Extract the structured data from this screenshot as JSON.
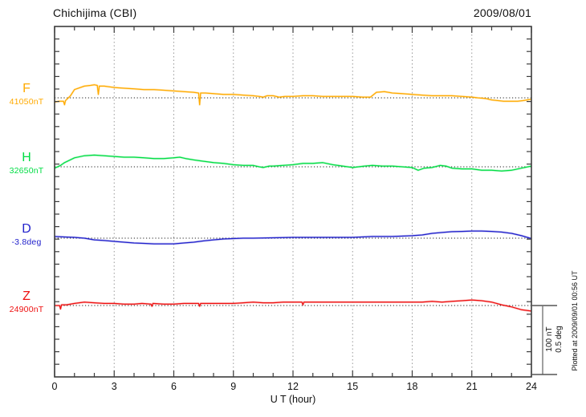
{
  "header": {
    "title": "Chichijima (CBI)",
    "date": "2009/08/01"
  },
  "footer": {
    "plotted_at": "Plotted at 2009/09/01 00:56 UT"
  },
  "chart_data": {
    "type": "line",
    "title": "Chichijima (CBI)",
    "date": "2009/08/01",
    "xlabel": "U T (hour)",
    "x_range": [
      0,
      24
    ],
    "x_ticks": [
      0,
      3,
      6,
      9,
      12,
      15,
      18,
      21,
      24
    ],
    "grid": "vertical dotted gridlines every 3 hours; dotted horizontal baseline per trace",
    "legend_position": "left margin, one label per stacked trace",
    "scale_labels": [
      "100 nT",
      "0.5 deg"
    ],
    "scale": {
      "nT_per_division": 100,
      "deg_per_division": 0.5
    },
    "series": [
      {
        "name": "F",
        "unit": "nT",
        "baseline": 41050,
        "baseline_label": "41050nT",
        "color": "#FFAA00",
        "points": [
          [
            0,
            41044
          ],
          [
            0.2,
            41045
          ],
          [
            0.45,
            41045
          ],
          [
            0.5,
            41040
          ],
          [
            0.55,
            41046
          ],
          [
            0.8,
            41053
          ],
          [
            1,
            41062
          ],
          [
            1.5,
            41067
          ],
          [
            1.8,
            41068
          ],
          [
            2,
            41069
          ],
          [
            2.15,
            41068
          ],
          [
            2.2,
            41055
          ],
          [
            2.25,
            41067
          ],
          [
            2.5,
            41067
          ],
          [
            3,
            41065
          ],
          [
            3.5,
            41064
          ],
          [
            4,
            41063
          ],
          [
            4.5,
            41062
          ],
          [
            5,
            41062
          ],
          [
            5.5,
            41061
          ],
          [
            6,
            41060
          ],
          [
            6.5,
            41059
          ],
          [
            7,
            41058
          ],
          [
            7.25,
            41057
          ],
          [
            7.3,
            41040
          ],
          [
            7.35,
            41057
          ],
          [
            7.6,
            41057
          ],
          [
            8,
            41056
          ],
          [
            8.5,
            41055
          ],
          [
            9,
            41055
          ],
          [
            9.5,
            41054
          ],
          [
            10,
            41053
          ],
          [
            10.3,
            41052
          ],
          [
            10.5,
            41051
          ],
          [
            10.7,
            41053
          ],
          [
            11,
            41053
          ],
          [
            11.3,
            41051
          ],
          [
            11.6,
            41052
          ],
          [
            12,
            41052
          ],
          [
            12.5,
            41053
          ],
          [
            13,
            41053
          ],
          [
            13.5,
            41052
          ],
          [
            14,
            41052
          ],
          [
            14.5,
            41052
          ],
          [
            15,
            41052
          ],
          [
            15.5,
            41051
          ],
          [
            15.9,
            41051
          ],
          [
            16.2,
            41058
          ],
          [
            16.6,
            41059
          ],
          [
            17,
            41057
          ],
          [
            17.5,
            41056
          ],
          [
            18,
            41055
          ],
          [
            18.5,
            41054
          ],
          [
            19,
            41053
          ],
          [
            19.5,
            41053
          ],
          [
            20,
            41053
          ],
          [
            20.5,
            41052
          ],
          [
            21,
            41051
          ],
          [
            21.3,
            41050
          ],
          [
            21.7,
            41049
          ],
          [
            22,
            41047
          ],
          [
            22.3,
            41046
          ],
          [
            22.6,
            41045
          ],
          [
            23,
            41045
          ],
          [
            23.3,
            41045
          ],
          [
            23.6,
            41046
          ],
          [
            24,
            41048
          ]
        ]
      },
      {
        "name": "H",
        "unit": "nT",
        "baseline": 32650,
        "baseline_label": "32650nT",
        "color": "#00DD44",
        "points": [
          [
            0,
            32648
          ],
          [
            0.3,
            32652
          ],
          [
            0.5,
            32656
          ],
          [
            1,
            32663
          ],
          [
            1.5,
            32666
          ],
          [
            2,
            32667
          ],
          [
            2.5,
            32666
          ],
          [
            3,
            32665
          ],
          [
            3.5,
            32664
          ],
          [
            4,
            32664
          ],
          [
            4.5,
            32663
          ],
          [
            5,
            32662
          ],
          [
            5.5,
            32662
          ],
          [
            6,
            32663
          ],
          [
            6.3,
            32664
          ],
          [
            6.6,
            32662
          ],
          [
            7,
            32660
          ],
          [
            7.5,
            32658
          ],
          [
            8,
            32656
          ],
          [
            8.5,
            32655
          ],
          [
            9,
            32653
          ],
          [
            9.5,
            32652
          ],
          [
            10,
            32652
          ],
          [
            10.3,
            32650
          ],
          [
            10.5,
            32649
          ],
          [
            10.8,
            32651
          ],
          [
            11,
            32651
          ],
          [
            11.5,
            32652
          ],
          [
            12,
            32653
          ],
          [
            12.5,
            32655
          ],
          [
            13,
            32655
          ],
          [
            13.5,
            32656
          ],
          [
            14,
            32653
          ],
          [
            14.5,
            32651
          ],
          [
            15,
            32649
          ],
          [
            15.3,
            32650
          ],
          [
            15.6,
            32651
          ],
          [
            16,
            32652
          ],
          [
            16.5,
            32651
          ],
          [
            17,
            32651
          ],
          [
            17.5,
            32650
          ],
          [
            18,
            32649
          ],
          [
            18.3,
            32645
          ],
          [
            18.6,
            32648
          ],
          [
            19,
            32649
          ],
          [
            19.4,
            32652
          ],
          [
            19.7,
            32651
          ],
          [
            20,
            32648
          ],
          [
            20.5,
            32647
          ],
          [
            21,
            32647
          ],
          [
            21.5,
            32645
          ],
          [
            22,
            32645
          ],
          [
            22.5,
            32644
          ],
          [
            23,
            32645
          ],
          [
            23.5,
            32648
          ],
          [
            24,
            32651
          ]
        ]
      },
      {
        "name": "D",
        "unit": "deg",
        "baseline": -3.8,
        "baseline_label": "-3.8deg",
        "color": "#2222CC",
        "points": [
          [
            0,
            -3.788
          ],
          [
            0.5,
            -3.791
          ],
          [
            1,
            -3.794
          ],
          [
            1.5,
            -3.8
          ],
          [
            2,
            -3.812
          ],
          [
            2.5,
            -3.817
          ],
          [
            3,
            -3.823
          ],
          [
            3.5,
            -3.829
          ],
          [
            4,
            -3.835
          ],
          [
            4.5,
            -3.838
          ],
          [
            5,
            -3.841
          ],
          [
            5.5,
            -3.841
          ],
          [
            6,
            -3.841
          ],
          [
            6.5,
            -3.835
          ],
          [
            7,
            -3.829
          ],
          [
            7.5,
            -3.82
          ],
          [
            8,
            -3.812
          ],
          [
            8.5,
            -3.806
          ],
          [
            9,
            -3.803
          ],
          [
            9.5,
            -3.8
          ],
          [
            10,
            -3.8
          ],
          [
            11,
            -3.797
          ],
          [
            12,
            -3.794
          ],
          [
            13,
            -3.794
          ],
          [
            14,
            -3.794
          ],
          [
            15,
            -3.794
          ],
          [
            16,
            -3.788
          ],
          [
            17,
            -3.788
          ],
          [
            18,
            -3.782
          ],
          [
            18.5,
            -3.777
          ],
          [
            19,
            -3.765
          ],
          [
            19.5,
            -3.759
          ],
          [
            20,
            -3.753
          ],
          [
            20.5,
            -3.751
          ],
          [
            21,
            -3.748
          ],
          [
            21.5,
            -3.748
          ],
          [
            22,
            -3.751
          ],
          [
            22.5,
            -3.756
          ],
          [
            23,
            -3.765
          ],
          [
            23.5,
            -3.782
          ],
          [
            24,
            -3.803
          ]
        ]
      },
      {
        "name": "Z",
        "unit": "nT",
        "baseline": 24900,
        "baseline_label": "24900nT",
        "color": "#EE1111",
        "points": [
          [
            0,
            24900
          ],
          [
            0.25,
            24900
          ],
          [
            0.3,
            24895
          ],
          [
            0.35,
            24901
          ],
          [
            0.6,
            24901
          ],
          [
            1,
            24903
          ],
          [
            1.5,
            24905
          ],
          [
            2,
            24904
          ],
          [
            2.5,
            24903
          ],
          [
            3,
            24903
          ],
          [
            3.5,
            24902
          ],
          [
            4,
            24902
          ],
          [
            4.4,
            24903
          ],
          [
            4.85,
            24902
          ],
          [
            4.9,
            24899
          ],
          [
            4.95,
            24903
          ],
          [
            5.5,
            24902
          ],
          [
            6,
            24902
          ],
          [
            6.5,
            24903
          ],
          [
            7,
            24903
          ],
          [
            7.25,
            24903
          ],
          [
            7.3,
            24899
          ],
          [
            7.35,
            24903
          ],
          [
            8,
            24903
          ],
          [
            8.5,
            24903
          ],
          [
            9,
            24903
          ],
          [
            9.5,
            24904
          ],
          [
            10,
            24905
          ],
          [
            10.5,
            24904
          ],
          [
            11,
            24904
          ],
          [
            11.5,
            24905
          ],
          [
            12,
            24905
          ],
          [
            12.45,
            24905
          ],
          [
            12.5,
            24901
          ],
          [
            12.55,
            24905
          ],
          [
            13,
            24905
          ],
          [
            14,
            24905
          ],
          [
            15,
            24905
          ],
          [
            16,
            24905
          ],
          [
            17,
            24905
          ],
          [
            18,
            24905
          ],
          [
            18.5,
            24905
          ],
          [
            19,
            24906
          ],
          [
            19.5,
            24905
          ],
          [
            20,
            24906
          ],
          [
            20.5,
            24907
          ],
          [
            21,
            24908
          ],
          [
            21.5,
            24907
          ],
          [
            22,
            24905
          ],
          [
            22.5,
            24901
          ],
          [
            23,
            24898
          ],
          [
            23.5,
            24894
          ],
          [
            24,
            24892
          ]
        ]
      }
    ]
  }
}
